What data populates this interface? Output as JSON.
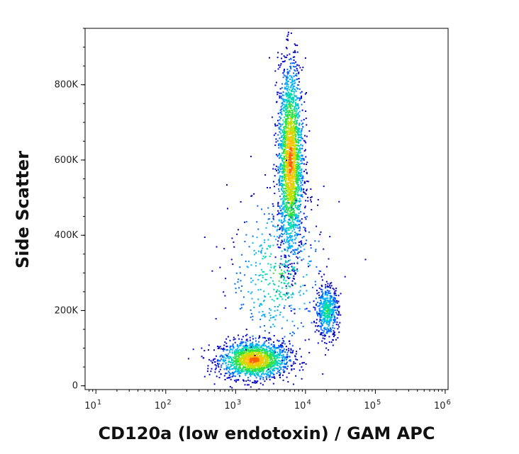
{
  "chart_data": {
    "type": "scatter",
    "title": "",
    "xlabel": "CD120a (low endotoxin) / GAM APC",
    "ylabel": "Side Scatter",
    "x_scale": "log",
    "xlim": [
      7,
      1100000
    ],
    "ylim": [
      -10000,
      950000
    ],
    "x_ticks": [
      {
        "value": 10,
        "base": "10",
        "exp": "1"
      },
      {
        "value": 100,
        "base": "10",
        "exp": "2"
      },
      {
        "value": 1000,
        "base": "10",
        "exp": "3"
      },
      {
        "value": 10000,
        "base": "10",
        "exp": "4"
      },
      {
        "value": 100000,
        "base": "10",
        "exp": "5"
      },
      {
        "value": 1000000,
        "base": "10",
        "exp": "6"
      }
    ],
    "y_ticks": [
      {
        "value": 0,
        "label": "0"
      },
      {
        "value": 200000,
        "label": "200K"
      },
      {
        "value": 400000,
        "label": "400K"
      },
      {
        "value": 600000,
        "label": "600K"
      },
      {
        "value": 800000,
        "label": "800K"
      }
    ],
    "colormap": [
      "#0000cc",
      "#0066ff",
      "#00b0ff",
      "#00d8b0",
      "#30e040",
      "#c0e000",
      "#ffc000",
      "#ff6000",
      "#e00000"
    ],
    "populations": [
      {
        "x_center": 1800,
        "y_center": 70000,
        "x_spread_log10": 0.25,
        "y_spread": 25000,
        "count": 1600
      },
      {
        "x_center": 6000,
        "y_center": 600000,
        "x_spread_log10": 0.09,
        "y_spread": 130000,
        "count": 2200
      },
      {
        "x_center": 20000,
        "y_center": 200000,
        "x_spread_log10": 0.08,
        "y_spread": 35000,
        "count": 500
      },
      {
        "x_center": 4000,
        "y_center": 300000,
        "x_spread_log10": 0.35,
        "y_spread": 110000,
        "count": 450
      }
    ],
    "grid": false,
    "legend": "none"
  }
}
